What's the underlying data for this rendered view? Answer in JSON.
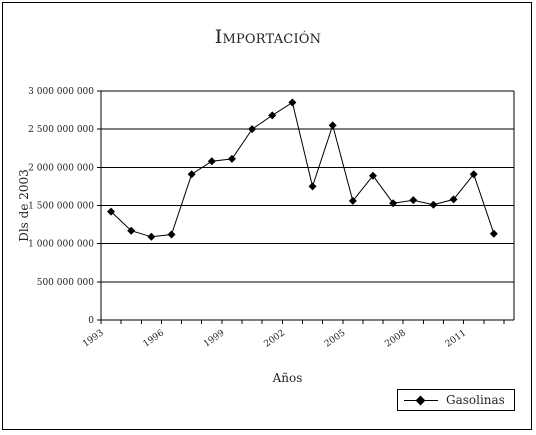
{
  "chart_data": {
    "type": "line",
    "title": "Importación",
    "xlabel": "Años",
    "ylabel": "Dls de 2003",
    "ylim": [
      0,
      3000000000
    ],
    "yticks": [
      0,
      500000000,
      1000000000,
      1500000000,
      2000000000,
      2500000000,
      3000000000
    ],
    "ytick_labels": [
      "0",
      "500 000 000",
      "1 000 000 000",
      "1 500 000 000",
      "2 000 000 000",
      "2 500 000 000",
      "3 000 000 000"
    ],
    "xticks": [
      1993,
      1996,
      1999,
      2002,
      2005,
      2008,
      2011
    ],
    "xtick_labels": [
      "1993",
      "1996",
      "1999",
      "2002",
      "2005",
      "2008",
      "2011"
    ],
    "xlim": [
      1993,
      2013.5
    ],
    "grid": "horizontal",
    "legend_placement": "bottom-right",
    "series": [
      {
        "name": "Gasolinas",
        "color": "#000000",
        "marker": "diamond",
        "x": [
          1993.5,
          1994.5,
          1995.5,
          1996.5,
          1997.5,
          1998.5,
          1999.5,
          2000.5,
          2001.5,
          2002.5,
          2003.5,
          2004.5,
          2005.5,
          2006.5,
          2007.5,
          2008.5,
          2009.5,
          2010.5,
          2011.5,
          2012.5
        ],
        "values": [
          1420000000,
          1170000000,
          1090000000,
          1120000000,
          1910000000,
          2080000000,
          2110000000,
          2500000000,
          2680000000,
          2850000000,
          1750000000,
          2550000000,
          1560000000,
          1890000000,
          1530000000,
          1570000000,
          1510000000,
          1580000000,
          1910000000,
          1130000000
        ]
      }
    ]
  }
}
